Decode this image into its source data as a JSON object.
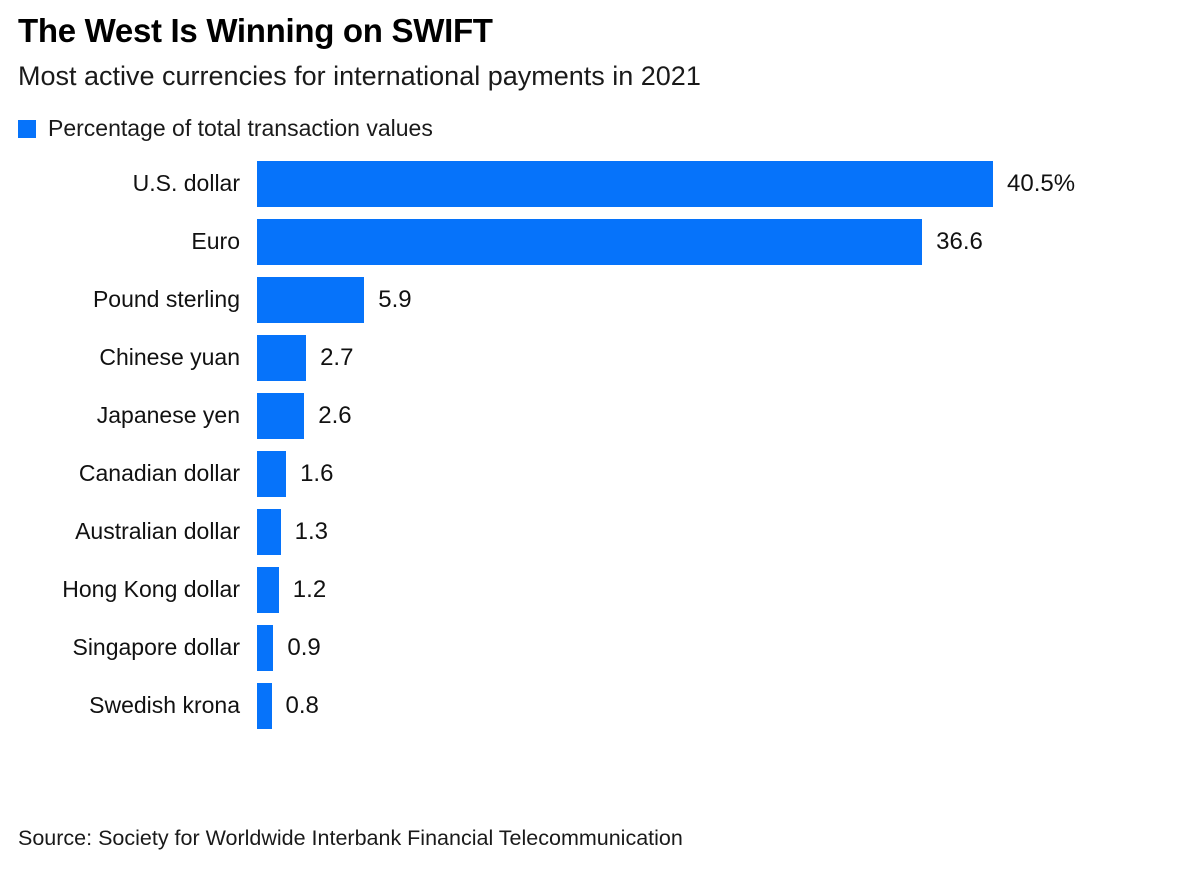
{
  "header": {
    "title": "The West Is Winning on SWIFT",
    "subtitle": "Most active currencies for international payments in 2021"
  },
  "legend": {
    "label": "Percentage of total transaction values",
    "swatch_color": "#0673fa"
  },
  "chart_data": {
    "type": "bar",
    "orientation": "horizontal",
    "title": "The West Is Winning on SWIFT",
    "subtitle": "Most active currencies for international payments in 2021",
    "legend_entries": [
      "Percentage of total transaction values"
    ],
    "legend_position": "top-left",
    "categories": [
      "U.S. dollar",
      "Euro",
      "Pound sterling",
      "Chinese yuan",
      "Japanese yen",
      "Canadian dollar",
      "Australian dollar",
      "Hong Kong dollar",
      "Singapore dollar",
      "Swedish krona"
    ],
    "values": [
      40.5,
      36.6,
      5.9,
      2.7,
      2.6,
      1.6,
      1.3,
      1.2,
      0.9,
      0.8
    ],
    "value_labels": [
      "40.5%",
      "36.6",
      "5.9",
      "2.7",
      "2.6",
      "1.6",
      "1.3",
      "1.2",
      "0.9",
      "0.8"
    ],
    "unit": "percent",
    "xlabel": "",
    "ylabel": "",
    "xlim": [
      0,
      45
    ],
    "grid": false,
    "bar_color": "#0673fa"
  },
  "footer": {
    "source": "Source: Society for Worldwide Interbank Financial Telecommunication"
  }
}
